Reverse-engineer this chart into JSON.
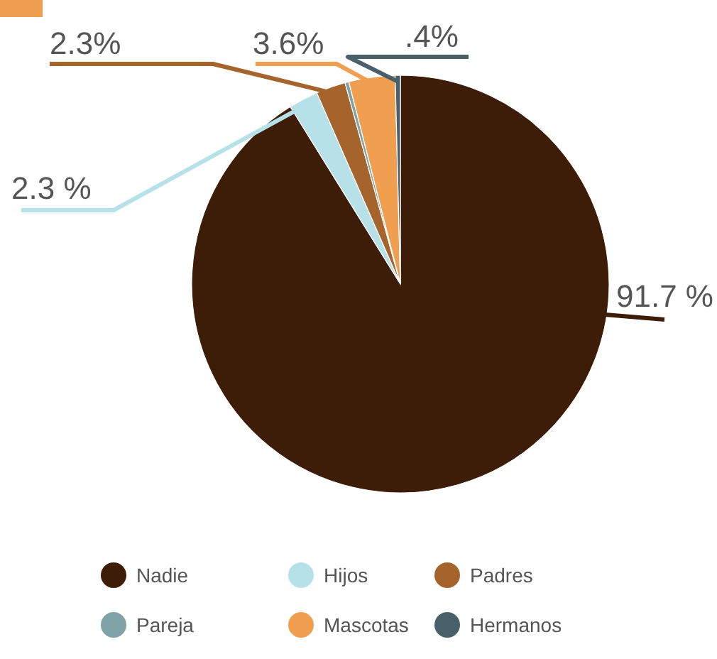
{
  "chart_data": {
    "type": "pie",
    "categories": [
      "Nadie",
      "Hijos",
      "Padres",
      "Pareja",
      "Mascotas",
      "Hermanos"
    ],
    "values": [
      91.7,
      2.3,
      2.3,
      0.3,
      3.6,
      0.4
    ],
    "colors": [
      "#3d1c08",
      "#b7e1e8",
      "#a5642c",
      "#7fa3a6",
      "#ef9f4f",
      "#48606a"
    ],
    "value_labels": [
      "91.7 %",
      "2.3 %",
      "2.3%",
      null,
      "3.6%",
      ".4%"
    ],
    "legend": "bottom"
  }
}
